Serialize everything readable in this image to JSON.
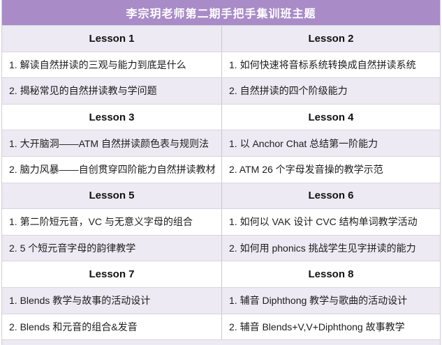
{
  "title": "李宗玥老师第二期手把手集训班主题",
  "colors": {
    "title_bar_bg": "#a98bc8",
    "title_text": "#ffffff",
    "band_lavender": "#edeaf3",
    "band_white": "#ffffff",
    "grid_line": "#d8d5df"
  },
  "lessons": [
    {
      "label": "Lesson 1",
      "items": [
        "1. 解读自然拼读的三观与能力到底是什么",
        "2. 揭秘常见的自然拼读教与学问题"
      ]
    },
    {
      "label": "Lesson 2",
      "items": [
        "1. 如何快速将音标系统转换成自然拼读系统",
        "2. 自然拼读的四个阶级能力"
      ]
    },
    {
      "label": "Lesson 3",
      "items": [
        "1. 大开脑洞——ATM 自然拼读颜色表与规则法",
        "2. 脑力风暴——自创贯穿四阶能力自然拼读教材"
      ]
    },
    {
      "label": "Lesson 4",
      "items": [
        "1. 以 Anchor Chat 总结第一阶能力",
        "2. ATM 26 个字母发音操的教学示范"
      ]
    },
    {
      "label": "Lesson 5",
      "items": [
        "1. 第二阶短元音，VC 与无意义字母的组合",
        "2. 5 个短元音字母的韵律教学"
      ]
    },
    {
      "label": "Lesson 6",
      "items": [
        "1. 如何以 VAK 设计 CVC 结构单词教学活动",
        "2. 如何用 phonics 挑战学生见字拼读的能力"
      ]
    },
    {
      "label": "Lesson 7",
      "items": [
        "1. Blends 教学与故事的活动设计",
        "2. Blends 和元音的组合&发音"
      ]
    },
    {
      "label": "Lesson 8",
      "items": [
        "1. 辅音 Diphthong 教学与歌曲的活动设计",
        "2. 辅音 Blends+V,V+Diphthong 故事教学"
      ]
    }
  ]
}
